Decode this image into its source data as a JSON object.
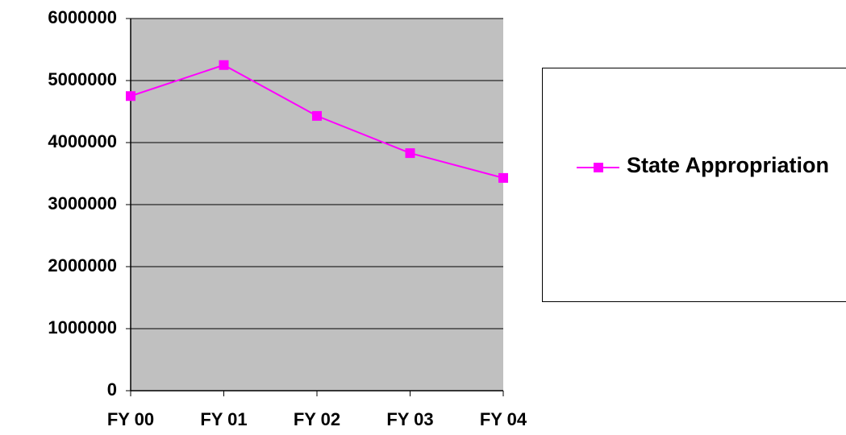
{
  "chart_data": {
    "type": "line",
    "categories": [
      "FY 00",
      "FY 01",
      "FY 02",
      "FY 03",
      "FY 04"
    ],
    "series": [
      {
        "name": "State Appropriation",
        "color": "#ff00ff",
        "values": [
          4750000,
          5250000,
          4430000,
          3830000,
          3430000
        ]
      }
    ],
    "ylim": [
      0,
      6000000
    ],
    "yticks": [
      0,
      1000000,
      2000000,
      3000000,
      4000000,
      5000000,
      6000000
    ],
    "grid": true
  }
}
